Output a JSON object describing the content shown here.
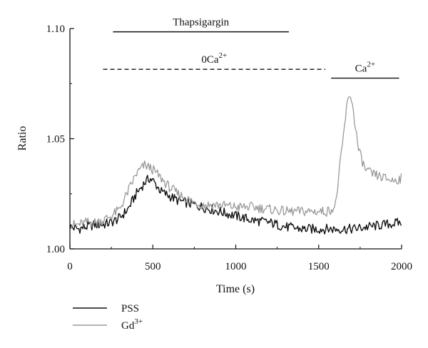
{
  "chart_data": {
    "type": "line",
    "xlabel": "Time (s)",
    "ylabel": "Ratio",
    "xlim": [
      0,
      2000
    ],
    "ylim": [
      1.0,
      1.1
    ],
    "xticks": [
      "0",
      "500",
      "1000",
      "1500",
      "2000"
    ],
    "yticks": [
      "1.00",
      "1.05",
      "1.10"
    ],
    "grid": false,
    "legend_position": "bottom-left",
    "annotations": [
      {
        "label": "Thapsigargin",
        "x_start": 260,
        "x_end": 1320,
        "y": 1.0985,
        "style": "solid"
      },
      {
        "label_base": "0Ca",
        "label_sup": "2+",
        "x_start": 200,
        "x_end": 1540,
        "y": 1.0815,
        "style": "dashed"
      },
      {
        "label_base": "Ca",
        "label_sup": "2+",
        "x_start": 1575,
        "x_end": 1985,
        "y": 1.0775,
        "style": "solid"
      }
    ],
    "series": [
      {
        "name": "PSS",
        "label_base": "PSS",
        "label_sup": "",
        "color": "#111111",
        "points": [
          [
            0,
            1.01
          ],
          [
            50,
            1.009
          ],
          [
            100,
            1.01
          ],
          [
            150,
            1.011
          ],
          [
            200,
            1.011
          ],
          [
            250,
            1.012
          ],
          [
            300,
            1.014
          ],
          [
            350,
            1.018
          ],
          [
            400,
            1.025
          ],
          [
            450,
            1.03
          ],
          [
            480,
            1.032
          ],
          [
            500,
            1.031
          ],
          [
            550,
            1.026
          ],
          [
            600,
            1.024
          ],
          [
            650,
            1.022
          ],
          [
            700,
            1.021
          ],
          [
            750,
            1.02
          ],
          [
            800,
            1.019
          ],
          [
            850,
            1.018
          ],
          [
            900,
            1.017
          ],
          [
            950,
            1.016
          ],
          [
            1000,
            1.015
          ],
          [
            1100,
            1.013
          ],
          [
            1200,
            1.012
          ],
          [
            1300,
            1.01
          ],
          [
            1400,
            1.009
          ],
          [
            1500,
            1.009
          ],
          [
            1600,
            1.009
          ],
          [
            1700,
            1.009
          ],
          [
            1800,
            1.01
          ],
          [
            1900,
            1.011
          ],
          [
            2000,
            1.012
          ]
        ]
      },
      {
        "name": "Gd3+",
        "label_base": "Gd",
        "label_sup": "3+",
        "color": "#999999",
        "points": [
          [
            0,
            1.011
          ],
          [
            50,
            1.011
          ],
          [
            100,
            1.012
          ],
          [
            150,
            1.012
          ],
          [
            200,
            1.013
          ],
          [
            250,
            1.015
          ],
          [
            300,
            1.018
          ],
          [
            350,
            1.026
          ],
          [
            400,
            1.034
          ],
          [
            450,
            1.038
          ],
          [
            480,
            1.037
          ],
          [
            500,
            1.036
          ],
          [
            550,
            1.032
          ],
          [
            600,
            1.028
          ],
          [
            650,
            1.025
          ],
          [
            700,
            1.023
          ],
          [
            750,
            1.021
          ],
          [
            800,
            1.02
          ],
          [
            900,
            1.02
          ],
          [
            1000,
            1.019
          ],
          [
            1100,
            1.019
          ],
          [
            1200,
            1.018
          ],
          [
            1300,
            1.017
          ],
          [
            1400,
            1.017
          ],
          [
            1500,
            1.017
          ],
          [
            1550,
            1.017
          ],
          [
            1600,
            1.019
          ],
          [
            1640,
            1.045
          ],
          [
            1670,
            1.065
          ],
          [
            1690,
            1.071
          ],
          [
            1710,
            1.062
          ],
          [
            1740,
            1.045
          ],
          [
            1780,
            1.036
          ],
          [
            1820,
            1.034
          ],
          [
            1860,
            1.033
          ],
          [
            1900,
            1.032
          ],
          [
            1950,
            1.031
          ],
          [
            2000,
            1.032
          ]
        ]
      }
    ]
  }
}
